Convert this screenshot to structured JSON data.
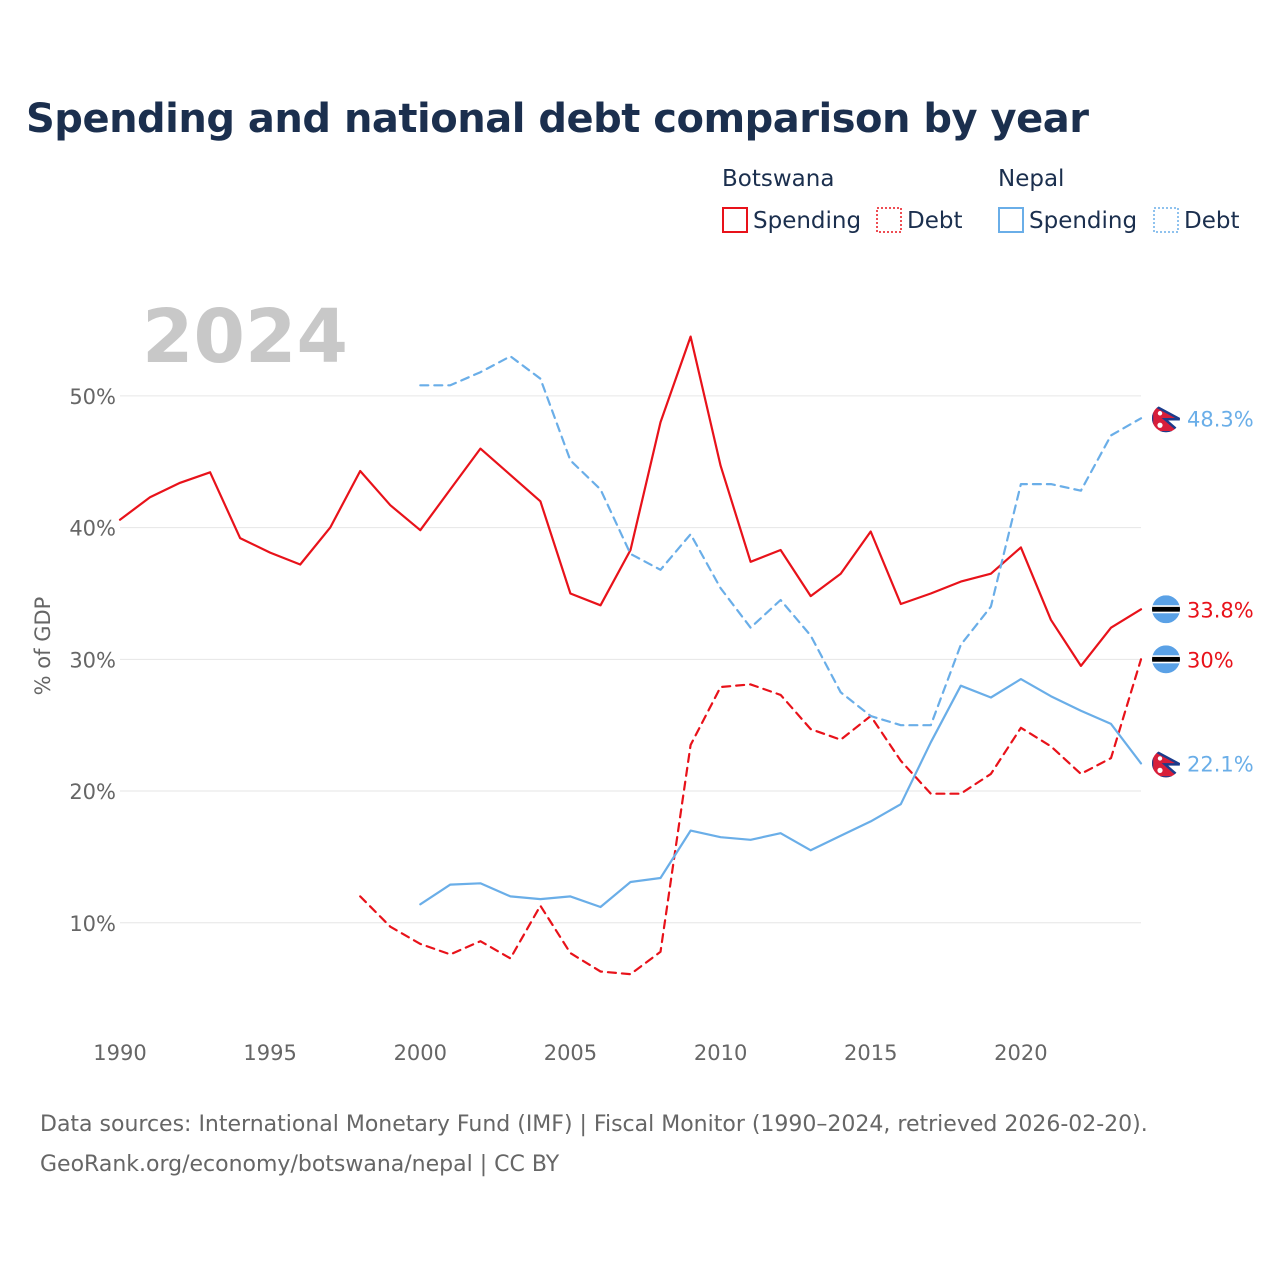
{
  "title": "Spending and national debt comparison by year",
  "colors": {
    "botswana": "#e8121a",
    "nepal": "#6aaee8",
    "text": "#1b2f4e",
    "muted": "#666666",
    "year": "#c8c8c8"
  },
  "legend": {
    "groups": [
      {
        "name": "Botswana",
        "items": [
          {
            "label": "Spending",
            "style": "solid",
            "color": "#e8121a"
          },
          {
            "label": "Debt",
            "style": "dotted",
            "color": "#e8121a"
          }
        ]
      },
      {
        "name": "Nepal",
        "items": [
          {
            "label": "Spending",
            "style": "solid",
            "color": "#6aaee8"
          },
          {
            "label": "Debt",
            "style": "dotted",
            "color": "#6aaee8"
          }
        ]
      }
    ]
  },
  "current_year": "2024",
  "source": {
    "line1": "Data sources: International Monetary Fund (IMF) | Fiscal Monitor (1990–2024, retrieved 2026-02-20).",
    "line2": "GeoRank.org/economy/botswana/nepal | CC BY"
  },
  "chart_data": {
    "type": "line",
    "ylabel": "% of GDP",
    "xlim": [
      1990,
      2024
    ],
    "ylim": [
      3,
      55
    ],
    "x_ticks": [
      1990,
      1995,
      2000,
      2005,
      2010,
      2015,
      2020
    ],
    "x_tick_labels": [
      "1990",
      "1995",
      "2000",
      "2005",
      "2010",
      "2015",
      "2020"
    ],
    "y_ticks": [
      10,
      20,
      30,
      40,
      50
    ],
    "y_tick_labels": [
      "10%",
      "20%",
      "30%",
      "40%",
      "50%"
    ],
    "series": [
      {
        "name": "Botswana Spending",
        "country": "Botswana",
        "metric": "Spending",
        "style": "solid",
        "color": "#e8121a",
        "end_label": "33.8%",
        "flag": "botswana",
        "x": [
          1990,
          1991,
          1992,
          1993,
          1994,
          1995,
          1996,
          1997,
          1998,
          1999,
          2000,
          2001,
          2002,
          2003,
          2004,
          2005,
          2006,
          2007,
          2008,
          2009,
          2010,
          2011,
          2012,
          2013,
          2014,
          2015,
          2016,
          2017,
          2018,
          2019,
          2020,
          2021,
          2022,
          2023,
          2024
        ],
        "values": [
          40.6,
          42.3,
          43.4,
          44.2,
          39.2,
          38.1,
          37.2,
          40.0,
          44.3,
          41.7,
          39.8,
          42.9,
          46.0,
          44.0,
          42.0,
          35.0,
          34.1,
          38.3,
          48.0,
          54.5,
          44.7,
          37.4,
          38.3,
          34.8,
          36.5,
          39.7,
          34.2,
          35.0,
          35.9,
          36.5,
          38.5,
          33.0,
          29.5,
          32.4,
          33.8
        ]
      },
      {
        "name": "Botswana Debt",
        "country": "Botswana",
        "metric": "Debt",
        "style": "dashed",
        "color": "#e8121a",
        "end_label": "30%",
        "flag": "botswana",
        "x": [
          1998,
          1999,
          2000,
          2001,
          2002,
          2003,
          2004,
          2005,
          2006,
          2007,
          2008,
          2009,
          2010,
          2011,
          2012,
          2013,
          2014,
          2015,
          2016,
          2017,
          2018,
          2019,
          2020,
          2021,
          2022,
          2023,
          2024
        ],
        "values": [
          12.0,
          9.7,
          8.4,
          7.6,
          8.6,
          7.3,
          11.3,
          7.7,
          6.3,
          6.1,
          7.8,
          23.5,
          27.9,
          28.1,
          27.3,
          24.7,
          23.9,
          25.7,
          22.3,
          19.8,
          19.8,
          21.3,
          24.8,
          23.4,
          21.3,
          22.5,
          30.0
        ]
      },
      {
        "name": "Nepal Spending",
        "country": "Nepal",
        "metric": "Spending",
        "style": "solid",
        "color": "#6aaee8",
        "end_label": "22.1%",
        "flag": "nepal",
        "x": [
          2000,
          2001,
          2002,
          2003,
          2004,
          2005,
          2006,
          2007,
          2008,
          2009,
          2010,
          2011,
          2012,
          2013,
          2014,
          2015,
          2016,
          2017,
          2018,
          2019,
          2020,
          2021,
          2022,
          2023,
          2024
        ],
        "values": [
          11.4,
          12.9,
          13.0,
          12.0,
          11.8,
          12.0,
          11.2,
          13.1,
          13.4,
          17.0,
          16.5,
          16.3,
          16.8,
          15.5,
          16.6,
          17.7,
          19.0,
          23.7,
          28.0,
          27.1,
          28.5,
          27.2,
          26.1,
          25.1,
          22.1
        ]
      },
      {
        "name": "Nepal Debt",
        "country": "Nepal",
        "metric": "Debt",
        "style": "dashed",
        "color": "#6aaee8",
        "end_label": "48.3%",
        "flag": "nepal",
        "x": [
          2000,
          2001,
          2002,
          2003,
          2004,
          2005,
          2006,
          2007,
          2008,
          2009,
          2010,
          2011,
          2012,
          2013,
          2014,
          2015,
          2016,
          2017,
          2018,
          2019,
          2020,
          2021,
          2022,
          2023,
          2024
        ],
        "values": [
          50.8,
          50.8,
          51.8,
          53.0,
          51.3,
          45.1,
          42.9,
          38.0,
          36.8,
          39.5,
          35.4,
          32.4,
          34.5,
          31.8,
          27.5,
          25.7,
          25.0,
          25.0,
          31.1,
          34.0,
          43.3,
          43.3,
          42.8,
          47.0,
          48.3
        ]
      }
    ]
  }
}
